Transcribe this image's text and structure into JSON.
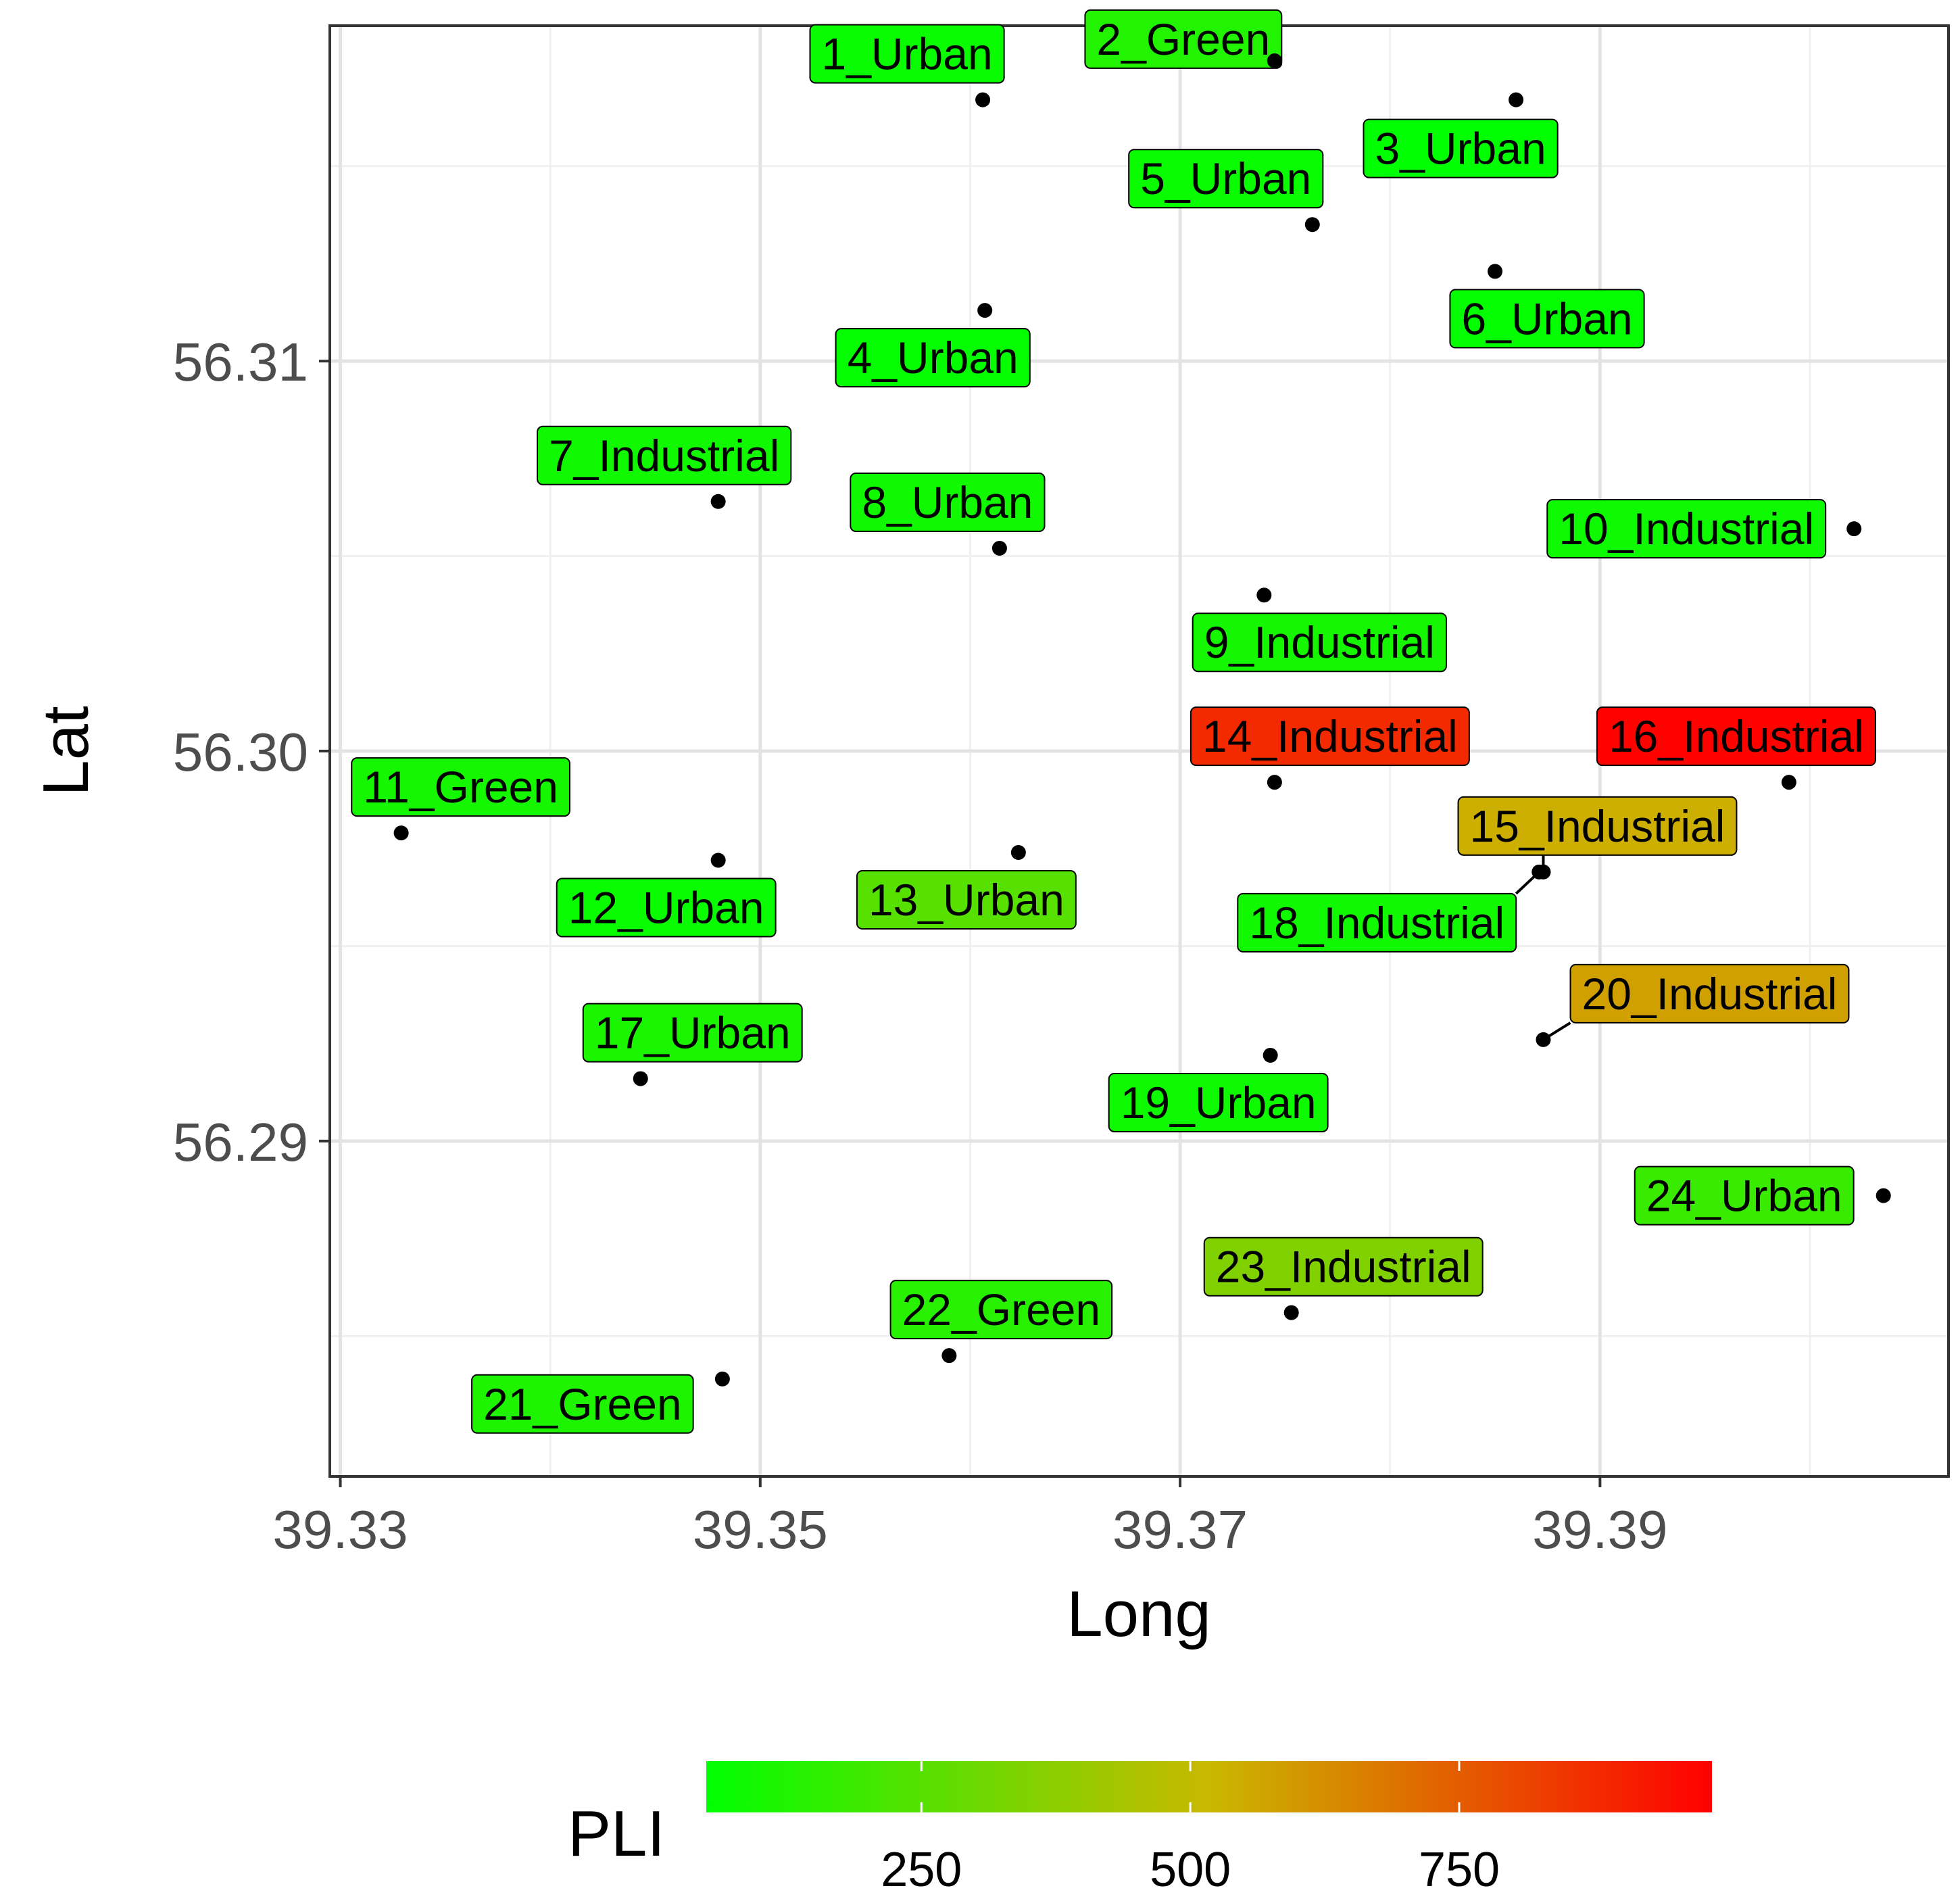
{
  "chart_data": {
    "type": "scatter",
    "title": "",
    "xlabel": "Long",
    "ylabel": "Lat",
    "xlim": [
      39.3295,
      39.4066
    ],
    "ylim": [
      56.2814,
      56.3186
    ],
    "x_ticks": [
      39.33,
      39.35,
      39.37,
      39.39
    ],
    "x_tick_labels": [
      "39.33",
      "39.35",
      "39.37",
      "39.39"
    ],
    "y_ticks": [
      56.29,
      56.3,
      56.31
    ],
    "y_tick_labels": [
      "56.29",
      "56.30",
      "56.31"
    ],
    "grid": true,
    "legend": {
      "title": "PLI",
      "placement": "bottom",
      "ticks": [
        250,
        500,
        750
      ],
      "tick_labels": [
        "250",
        "500",
        "750"
      ],
      "range": [
        50,
        985
      ],
      "colors": [
        "#00ff00",
        "#ff0000"
      ]
    },
    "points": [
      {
        "label": "1_Urban",
        "x": 39.3606,
        "y": 56.3167,
        "pli": 70
      },
      {
        "label": "2_Green",
        "x": 39.3745,
        "y": 56.3177,
        "pli": 130
      },
      {
        "label": "3_Urban",
        "x": 39.386,
        "y": 56.3167,
        "pli": 40
      },
      {
        "label": "4_Urban",
        "x": 39.3607,
        "y": 56.3113,
        "pli": 60
      },
      {
        "label": "5_Urban",
        "x": 39.3763,
        "y": 56.3135,
        "pli": 70
      },
      {
        "label": "6_Urban",
        "x": 39.385,
        "y": 56.3123,
        "pli": 60
      },
      {
        "label": "7_Industrial",
        "x": 39.348,
        "y": 56.3064,
        "pli": 90
      },
      {
        "label": "8_Urban",
        "x": 39.3614,
        "y": 56.3052,
        "pli": 90
      },
      {
        "label": "9_Industrial",
        "x": 39.374,
        "y": 56.304,
        "pli": 100
      },
      {
        "label": "10_Industrial",
        "x": 39.4021,
        "y": 56.3057,
        "pli": 80
      },
      {
        "label": "11_Green",
        "x": 39.3329,
        "y": 56.2979,
        "pli": 100
      },
      {
        "label": "12_Urban",
        "x": 39.348,
        "y": 56.2972,
        "pli": 70
      },
      {
        "label": "13_Urban",
        "x": 39.3623,
        "y": 56.2974,
        "pli": 250
      },
      {
        "label": "14_Industrial",
        "x": 39.3745,
        "y": 56.2992,
        "pli": 880
      },
      {
        "label": "15_Industrial",
        "x": 39.3873,
        "y": 56.2969,
        "pli": 540
      },
      {
        "label": "16_Industrial",
        "x": 39.399,
        "y": 56.2992,
        "pli": 980
      },
      {
        "label": "17_Urban",
        "x": 39.3443,
        "y": 56.2916,
        "pli": 110
      },
      {
        "label": "18_Industrial",
        "x": 39.3871,
        "y": 56.2969,
        "pli": 90
      },
      {
        "label": "19_Urban",
        "x": 39.3743,
        "y": 56.2922,
        "pli": 80
      },
      {
        "label": "20_Industrial",
        "x": 39.3873,
        "y": 56.2926,
        "pli": 580
      },
      {
        "label": "21_Green",
        "x": 39.3482,
        "y": 56.2839,
        "pli": 120
      },
      {
        "label": "22_Green",
        "x": 39.359,
        "y": 56.2845,
        "pli": 140
      },
      {
        "label": "23_Industrial",
        "x": 39.3753,
        "y": 56.2856,
        "pli": 350
      },
      {
        "label": "24_Urban",
        "x": 39.4035,
        "y": 56.2886,
        "pli": 180
      }
    ]
  }
}
